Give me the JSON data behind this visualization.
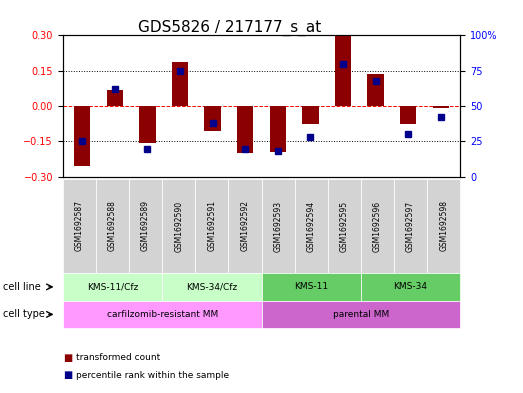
{
  "title": "GDS5826 / 217177_s_at",
  "samples": [
    "GSM1692587",
    "GSM1692588",
    "GSM1692589",
    "GSM1692590",
    "GSM1692591",
    "GSM1692592",
    "GSM1692593",
    "GSM1692594",
    "GSM1692595",
    "GSM1692596",
    "GSM1692597",
    "GSM1692598"
  ],
  "transformed_count": [
    -0.255,
    0.07,
    -0.155,
    0.185,
    -0.105,
    -0.2,
    -0.195,
    -0.075,
    0.3,
    0.135,
    -0.075,
    -0.01
  ],
  "percentile_rank": [
    25,
    62,
    20,
    75,
    38,
    20,
    18,
    28,
    80,
    68,
    30,
    42
  ],
  "ylim_left": [
    -0.3,
    0.3
  ],
  "ylim_right": [
    0,
    100
  ],
  "yticks_left": [
    -0.3,
    -0.15,
    0,
    0.15,
    0.3
  ],
  "yticks_right": [
    0,
    25,
    50,
    75,
    100
  ],
  "hlines": [
    -0.15,
    0,
    0.15
  ],
  "bar_color": "#8B0000",
  "dot_color": "#00008B",
  "cell_lines": [
    {
      "label": "KMS-11/Cfz",
      "start": 0,
      "end": 2,
      "color": "#c8ffc8"
    },
    {
      "label": "KMS-34/Cfz",
      "start": 3,
      "end": 5,
      "color": "#c8ffc8"
    },
    {
      "label": "KMS-11",
      "start": 6,
      "end": 8,
      "color": "#66cc66"
    },
    {
      "label": "KMS-34",
      "start": 9,
      "end": 11,
      "color": "#66cc66"
    }
  ],
  "cell_types": [
    {
      "label": "carfilzomib-resistant MM",
      "start": 0,
      "end": 5,
      "color": "#ff99ff"
    },
    {
      "label": "parental MM",
      "start": 6,
      "end": 11,
      "color": "#cc66cc"
    }
  ],
  "cell_line_label": "cell line",
  "cell_type_label": "cell type",
  "legend_items": [
    {
      "color": "#8B0000",
      "label": "transformed count"
    },
    {
      "color": "#00008B",
      "label": "percentile rank within the sample"
    }
  ],
  "background_color": "#ffffff",
  "plot_bg_color": "#ffffff",
  "sample_bg_color": "#d3d3d3",
  "title_fontsize": 11,
  "tick_fontsize": 7
}
